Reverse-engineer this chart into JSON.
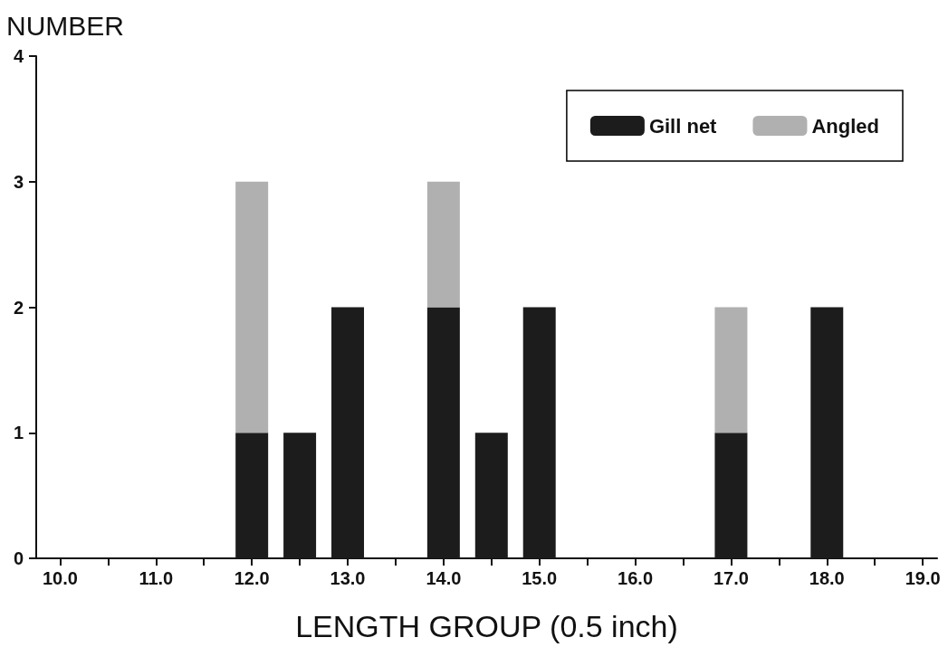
{
  "chart_data": {
    "type": "bar",
    "stacked": true,
    "xlabel": "LENGTH GROUP (0.5 inch)",
    "ylabel": "NUMBER",
    "x": [
      12.0,
      12.5,
      13.0,
      14.0,
      14.5,
      15.0,
      17.0,
      18.0
    ],
    "series": [
      {
        "name": "Gill net",
        "color": "#1c1c1c",
        "values": [
          1,
          1,
          2,
          2,
          1,
          2,
          1,
          2
        ]
      },
      {
        "name": "Angled",
        "color": "#b0b0b0",
        "values": [
          2,
          null,
          null,
          1,
          null,
          null,
          1,
          null
        ]
      }
    ],
    "xlim": [
      9.75,
      19.15
    ],
    "xticks": [
      {
        "value": 10,
        "label": "10.0"
      },
      {
        "value": 10.5,
        "label": null
      },
      {
        "value": 11,
        "label": "11.0"
      },
      {
        "value": 11.5,
        "label": null
      },
      {
        "value": 12,
        "label": "12.0"
      },
      {
        "value": 12.5,
        "label": null
      },
      {
        "value": 13,
        "label": "13.0"
      },
      {
        "value": 13.5,
        "label": null
      },
      {
        "value": 14,
        "label": "14.0"
      },
      {
        "value": 14.5,
        "label": null
      },
      {
        "value": 15,
        "label": "15.0"
      },
      {
        "value": 15.5,
        "label": null
      },
      {
        "value": 16,
        "label": "16.0"
      },
      {
        "value": 16.5,
        "label": null
      },
      {
        "value": 17,
        "label": "17.0"
      },
      {
        "value": 17.5,
        "label": null
      },
      {
        "value": 18,
        "label": "18.0"
      },
      {
        "value": 18.5,
        "label": null
      },
      {
        "value": 19,
        "label": "19.0"
      }
    ],
    "ylim": [
      0,
      4
    ],
    "yticks": [
      0,
      1,
      2,
      3,
      4
    ],
    "grid": false,
    "legend": "top right"
  }
}
